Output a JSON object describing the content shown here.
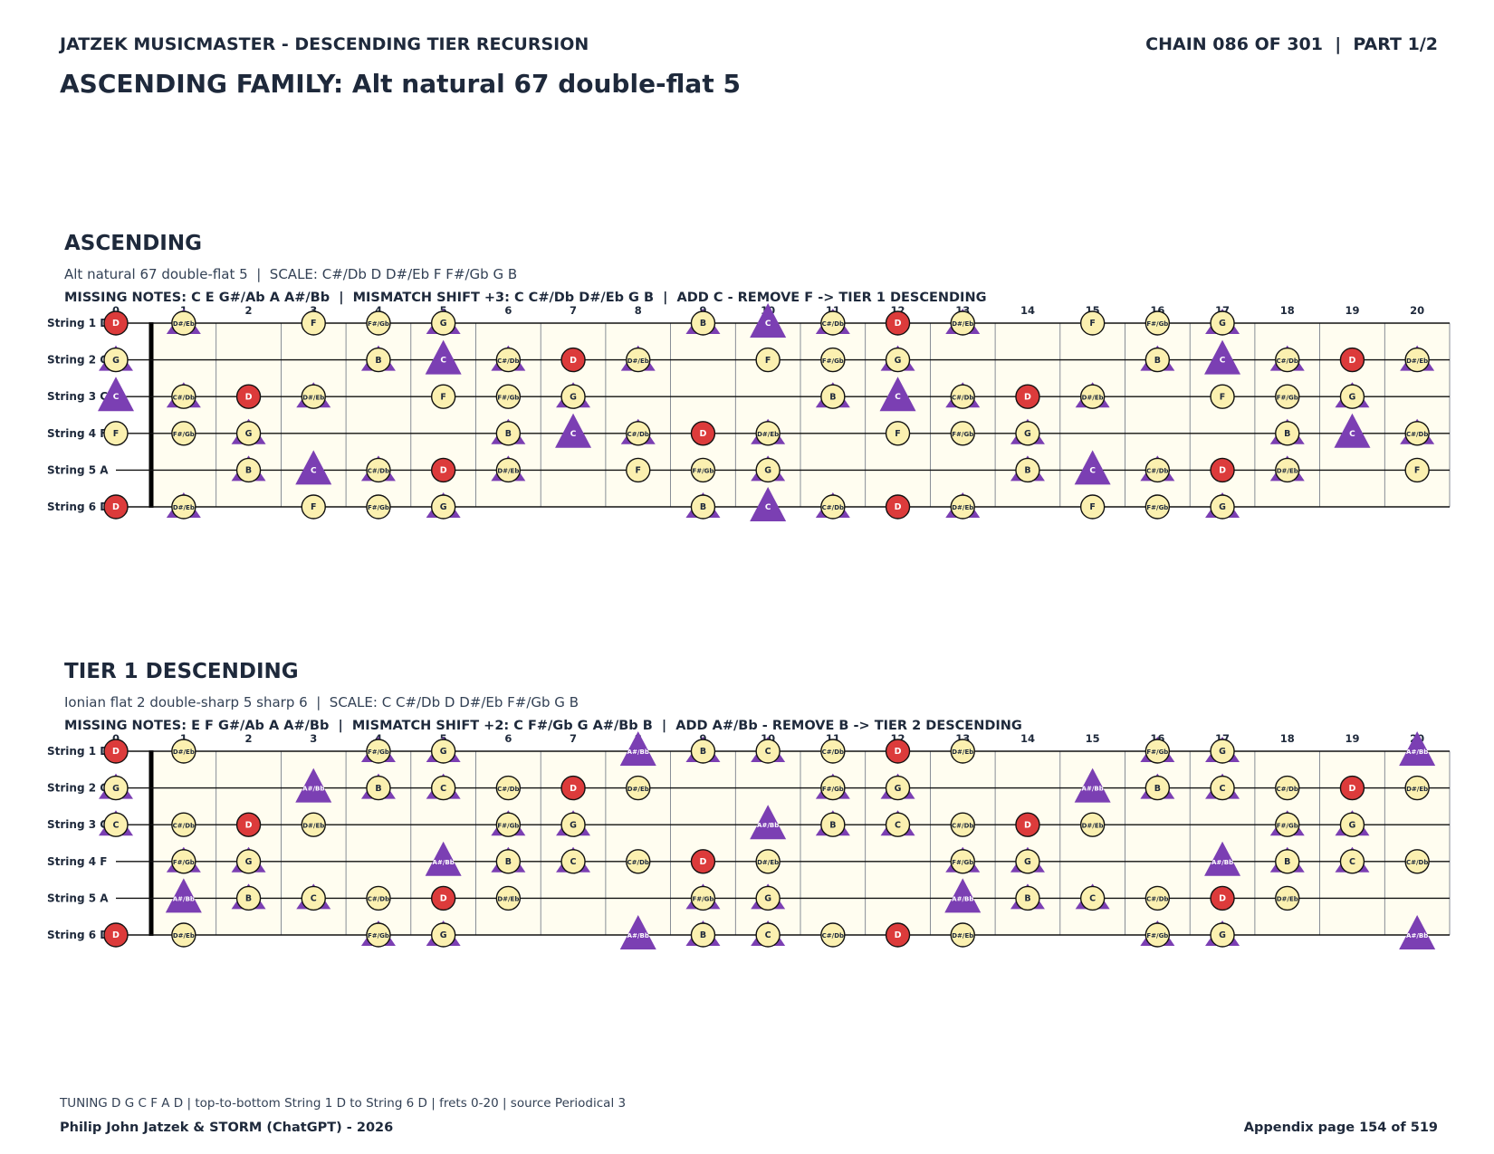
{
  "header": {
    "left": "JATZEK MUSICMASTER - DESCENDING TIER RECURSION",
    "right": "CHAIN 086 OF 301  |  PART 1/2",
    "title": "ASCENDING FAMILY: Alt natural 67 double-flat 5"
  },
  "strings": [
    "String 1 D",
    "String 2 G",
    "String 3 C",
    "String 4 F",
    "String 5 A",
    "String 6 D"
  ],
  "fret_numbers": [
    "0",
    "1",
    "2",
    "3",
    "4",
    "5",
    "6",
    "7",
    "8",
    "9",
    "10",
    "11",
    "12",
    "13",
    "14",
    "15",
    "16",
    "17",
    "18",
    "19",
    "20"
  ],
  "chromatic": [
    "C",
    "C#/Db",
    "D",
    "D#/Eb",
    "E",
    "F",
    "F#/Gb",
    "G",
    "G#/Ab",
    "A",
    "A#/Bb",
    "B"
  ],
  "string_open_pc": [
    2,
    7,
    0,
    5,
    9,
    2
  ],
  "legend_colors": {
    "root": "#dc3b3b",
    "scale": "#fbf0b0",
    "added": "#7b3fb3",
    "board": "#fffdf0"
  },
  "sections": [
    {
      "title": "ASCENDING",
      "subtitle": "Alt natural 67 double-flat 5  |  SCALE: C#/Db D D#/Eb F F#/Gb G B",
      "missing": "MISSING NOTES: C E G#/Ab A A#/Bb  |  MISMATCH SHIFT +3: C C#/Db D#/Eb G B  |  ADD C - REMOVE F -> TIER 1 DESCENDING",
      "root": "D",
      "scale": [
        "C#/Db",
        "D",
        "D#/Eb",
        "F",
        "F#/Gb",
        "G",
        "B"
      ],
      "marks": [
        "C",
        "C#/Db",
        "D#/Eb",
        "G",
        "B"
      ]
    },
    {
      "title": "TIER 1 DESCENDING",
      "subtitle": "Ionian flat 2 double-sharp 5 sharp 6  |  SCALE: C C#/Db D D#/Eb F#/Gb G B",
      "missing": "MISSING NOTES: E F G#/Ab A A#/Bb  |  MISMATCH SHIFT +2: C F#/Gb G A#/Bb B  |  ADD A#/Bb - REMOVE B -> TIER 2 DESCENDING",
      "root": "D",
      "scale": [
        "C",
        "C#/Db",
        "D",
        "D#/Eb",
        "F#/Gb",
        "G",
        "B"
      ],
      "marks": [
        "C",
        "F#/Gb",
        "G",
        "A#/Bb",
        "B"
      ]
    }
  ],
  "footer": {
    "note": "TUNING D G C F A D | top-to-bottom String 1 D to String 6 D | frets 0-20 | source Periodical 3",
    "left": "Philip John Jatzek & STORM (ChatGPT) - 2026",
    "right": "Appendix page 154 of 519"
  }
}
